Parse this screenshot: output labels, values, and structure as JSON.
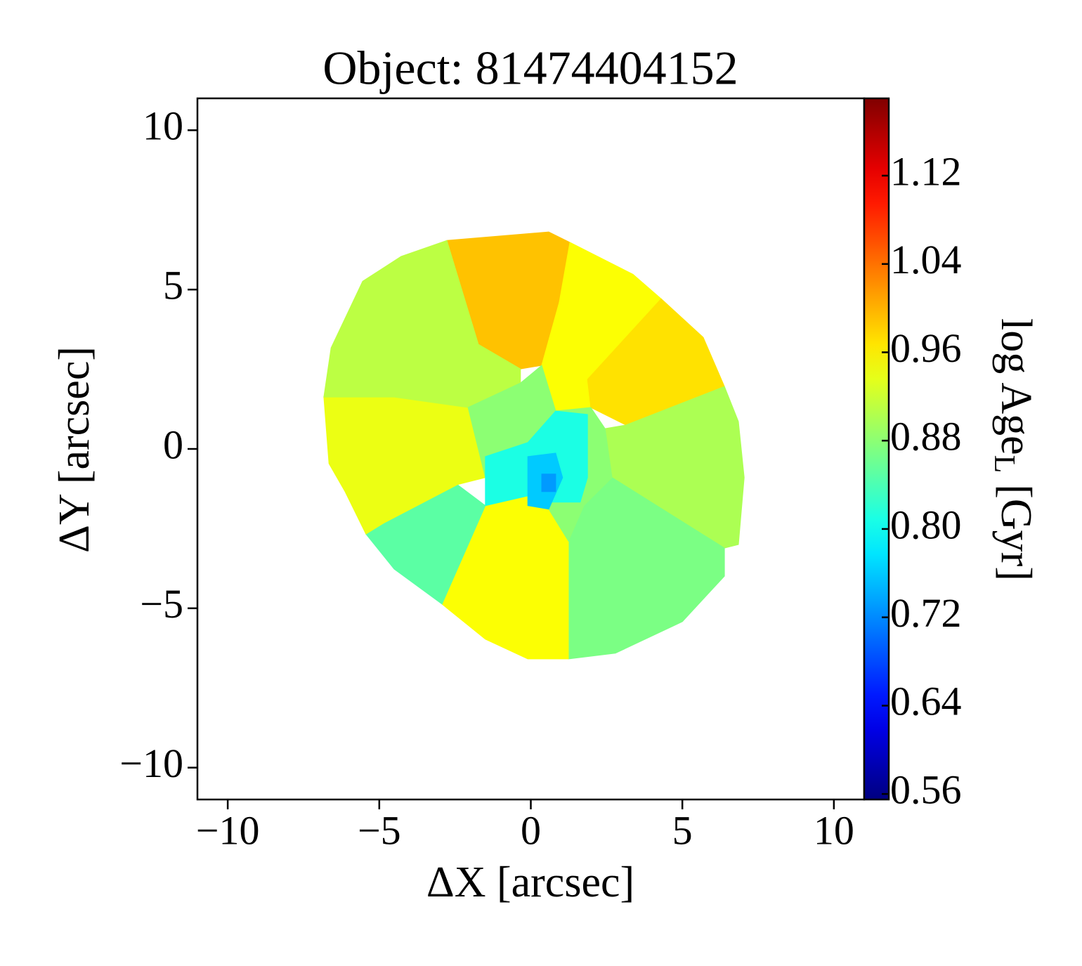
{
  "chart_data": {
    "type": "map",
    "title": "Object: 81474404152",
    "x_label": "ΔX [arcsec]",
    "y_label": "ΔY [arcsec]",
    "xlim": [
      -11,
      11
    ],
    "ylim": [
      -11,
      11
    ],
    "xticks": [
      {
        "value": -10,
        "label": "−10"
      },
      {
        "value": -5,
        "label": "−5"
      },
      0,
      5,
      10
    ],
    "yticks": [
      {
        "value": -10,
        "label": "−10"
      },
      {
        "value": -5,
        "label": "−5"
      },
      0,
      5,
      10
    ],
    "colormap": "jet",
    "clim": [
      0.555,
      1.19
    ],
    "colorbar_label": {
      "main": "log Age",
      "subscript": "L",
      "unit": "[Gyr]"
    },
    "colorbar_ticks": [
      0.56,
      0.64,
      0.72,
      {
        "value": 0.8,
        "label": "0.80"
      },
      0.88,
      0.96,
      1.04,
      1.12
    ],
    "regions": [
      {
        "value": 0.99,
        "polygon": [
          [
            -2.77,
            6.54
          ],
          [
            0.59,
            6.81
          ],
          [
            1.29,
            6.48
          ],
          [
            0.94,
            4.6
          ],
          [
            0.36,
            2.62
          ],
          [
            -0.34,
            2.51
          ],
          [
            -1.73,
            3.28
          ]
        ]
      },
      {
        "value": 0.95,
        "polygon": [
          [
            1.29,
            6.48
          ],
          [
            3.37,
            5.48
          ],
          [
            4.3,
            4.71
          ],
          [
            1.87,
            2.18
          ],
          [
            1.98,
            1.3
          ],
          [
            0.82,
            1.19
          ],
          [
            0.36,
            2.62
          ],
          [
            0.94,
            4.6
          ]
        ]
      },
      {
        "value": 0.97,
        "polygon": [
          [
            4.3,
            4.71
          ],
          [
            5.69,
            3.5
          ],
          [
            6.39,
            1.96
          ],
          [
            3.14,
            0.75
          ],
          [
            1.98,
            1.3
          ],
          [
            1.87,
            2.18
          ]
        ]
      },
      {
        "value": 0.9,
        "polygon": [
          [
            6.39,
            1.96
          ],
          [
            6.85,
            0.86
          ],
          [
            7.04,
            -0.9
          ],
          [
            6.85,
            -3.0
          ],
          [
            6.39,
            -3.11
          ],
          [
            2.68,
            -0.9
          ],
          [
            2.45,
            0.64
          ],
          [
            3.14,
            0.75
          ]
        ]
      },
      {
        "value": 0.87,
        "polygon": [
          [
            6.39,
            -3.11
          ],
          [
            6.39,
            -3.99
          ],
          [
            5.0,
            -5.42
          ],
          [
            2.79,
            -6.41
          ],
          [
            1.24,
            -6.59
          ],
          [
            1.24,
            -2.89
          ],
          [
            1.75,
            -1.78
          ],
          [
            2.68,
            -0.9
          ]
        ]
      },
      {
        "value": 0.95,
        "polygon": [
          [
            1.24,
            -6.59
          ],
          [
            -0.1,
            -6.59
          ],
          [
            -1.5,
            -5.97
          ],
          [
            -2.93,
            -4.87
          ],
          [
            -1.5,
            -1.78
          ],
          [
            0.01,
            -1.45
          ],
          [
            0.59,
            -1.89
          ],
          [
            1.24,
            -2.89
          ]
        ]
      },
      {
        "value": 0.85,
        "polygon": [
          [
            -2.93,
            -4.87
          ],
          [
            -4.51,
            -3.77
          ],
          [
            -5.44,
            -2.67
          ],
          [
            -4.86,
            -2.33
          ],
          [
            -2.42,
            -1.12
          ],
          [
            -1.5,
            -1.78
          ]
        ]
      },
      {
        "value": 0.94,
        "polygon": [
          [
            -5.44,
            -2.67
          ],
          [
            -6.13,
            -1.34
          ],
          [
            -6.66,
            -0.46
          ],
          [
            -6.83,
            1.63
          ],
          [
            -4.51,
            1.63
          ],
          [
            -2.07,
            1.3
          ],
          [
            -1.5,
            -0.9
          ],
          [
            -2.42,
            -1.12
          ],
          [
            -4.86,
            -2.33
          ]
        ]
      },
      {
        "value": 0.91,
        "polygon": [
          [
            -6.83,
            1.63
          ],
          [
            -6.59,
            3.17
          ],
          [
            -5.55,
            5.26
          ],
          [
            -4.28,
            6.04
          ],
          [
            -2.77,
            6.54
          ],
          [
            -1.73,
            3.28
          ],
          [
            -0.34,
            2.51
          ],
          [
            -0.34,
            2.07
          ],
          [
            -2.07,
            1.3
          ],
          [
            -4.51,
            1.63
          ]
        ]
      },
      {
        "value": 0.88,
        "polygon": [
          [
            -2.07,
            1.3
          ],
          [
            -0.34,
            2.07
          ],
          [
            0.36,
            2.62
          ],
          [
            0.82,
            1.19
          ],
          [
            1.98,
            1.3
          ],
          [
            2.45,
            0.64
          ],
          [
            2.68,
            -0.9
          ],
          [
            1.75,
            -1.78
          ],
          [
            1.24,
            -2.89
          ],
          [
            0.59,
            -1.89
          ],
          [
            0.01,
            -1.45
          ],
          [
            -1.5,
            -0.9
          ]
        ]
      },
      {
        "value": 0.81,
        "polygon": [
          [
            -1.5,
            -0.24
          ],
          [
            -0.1,
            0.2
          ],
          [
            0.82,
            1.19
          ],
          [
            1.87,
            1.08
          ],
          [
            1.87,
            -0.9
          ],
          [
            1.63,
            -1.67
          ],
          [
            0.59,
            -1.67
          ],
          [
            0.01,
            -1.45
          ],
          [
            -1.5,
            -1.78
          ]
        ]
      },
      {
        "value": 0.76,
        "polygon": [
          [
            -0.1,
            -0.24
          ],
          [
            0.82,
            -0.13
          ],
          [
            1.05,
            -0.9
          ],
          [
            0.59,
            -1.89
          ],
          [
            -0.1,
            -1.78
          ]
        ]
      },
      {
        "value": 0.73,
        "polygon": [
          [
            0.36,
            -0.79
          ],
          [
            0.82,
            -0.79
          ],
          [
            0.82,
            -1.34
          ],
          [
            0.36,
            -1.34
          ]
        ]
      }
    ]
  }
}
